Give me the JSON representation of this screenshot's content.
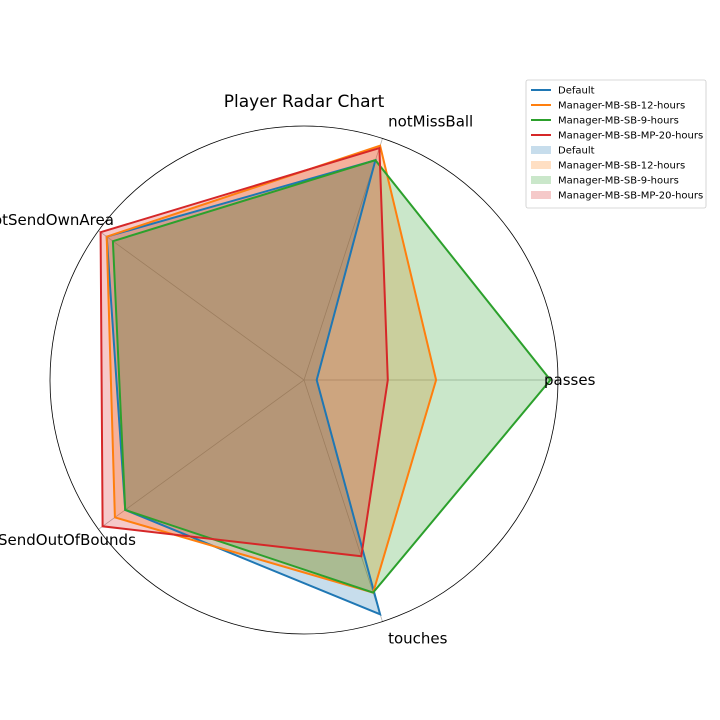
{
  "chart_data": {
    "type": "radar",
    "title": "Player Radar Chart",
    "axes": [
      "passes",
      "notMissBall",
      "notSendOwnArea",
      "notSendOutOfBounds",
      "touches"
    ],
    "rlim": [
      0,
      1
    ],
    "grid": "spokes and outer circle only",
    "legend_placement": "top-right outside",
    "series": [
      {
        "name": "Default",
        "color": "#1f77b4",
        "values": [
          0.05,
          0.91,
          0.96,
          0.87,
          0.97
        ]
      },
      {
        "name": "Manager-MB-SB-12-hours",
        "color": "#ff7f0e",
        "values": [
          0.52,
          0.97,
          0.96,
          0.92,
          0.88
        ]
      },
      {
        "name": "Manager-MB-SB-9-hours",
        "color": "#2ca02c",
        "values": [
          0.97,
          0.91,
          0.93,
          0.87,
          0.88
        ]
      },
      {
        "name": "Manager-MB-SB-MP-20-hours",
        "color": "#d62728",
        "values": [
          0.33,
          0.96,
          0.99,
          0.98,
          0.73
        ]
      }
    ],
    "legend": {
      "line_entries": [
        "Default",
        "Manager-MB-SB-12-hours",
        "Manager-MB-SB-9-hours",
        "Manager-MB-SB-MP-20-hours"
      ],
      "fill_entries": [
        "Default",
        "Manager-MB-SB-12-hours",
        "Manager-MB-SB-9-hours",
        "Manager-MB-SB-MP-20-hours"
      ]
    }
  }
}
